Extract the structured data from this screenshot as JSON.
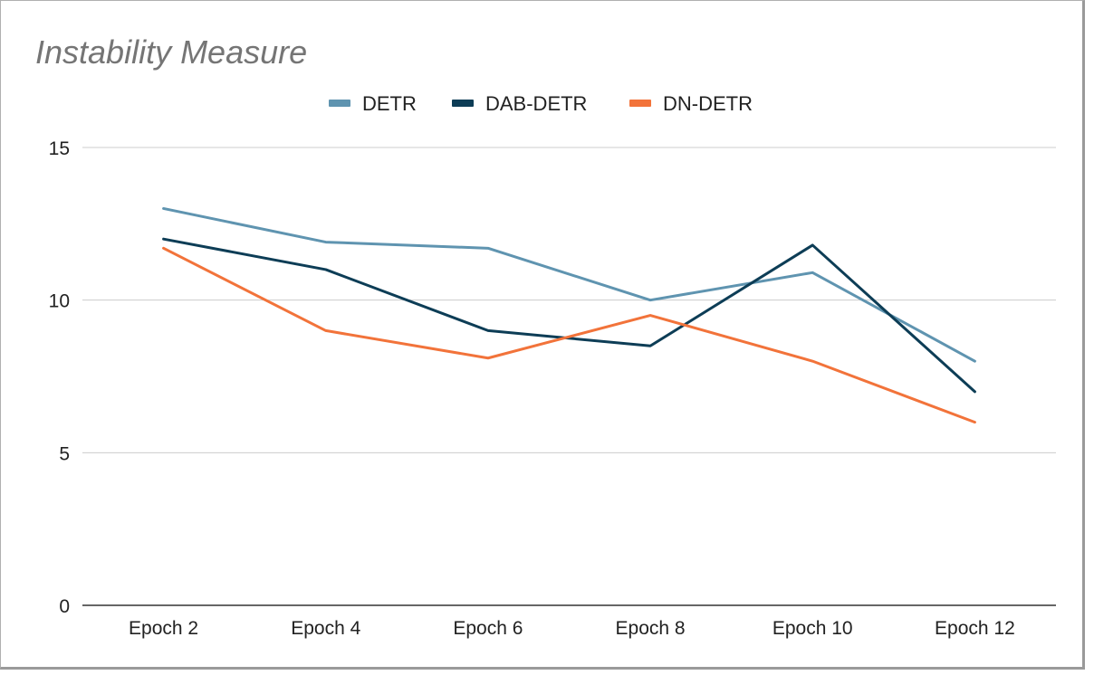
{
  "chart_data": {
    "type": "line",
    "title": "Instability Measure",
    "categories": [
      "Epoch 2",
      "Epoch 4",
      "Epoch 6",
      "Epoch 8",
      "Epoch 10",
      "Epoch 12"
    ],
    "series": [
      {
        "name": "DETR",
        "color": "#5f94b0",
        "values": [
          13,
          11.9,
          11.7,
          10,
          10.9,
          8
        ]
      },
      {
        "name": "DAB-DETR",
        "color": "#0d3d56",
        "values": [
          12,
          11,
          9,
          8.5,
          11.8,
          7
        ]
      },
      {
        "name": "DN-DETR",
        "color": "#f2733a",
        "values": [
          11.7,
          9,
          8.1,
          9.5,
          8,
          6
        ]
      }
    ],
    "ylim": [
      0,
      15
    ],
    "yticks": [
      0,
      5,
      10,
      15
    ],
    "grid": true,
    "legend": "top-center",
    "xlabel": "",
    "ylabel": ""
  }
}
